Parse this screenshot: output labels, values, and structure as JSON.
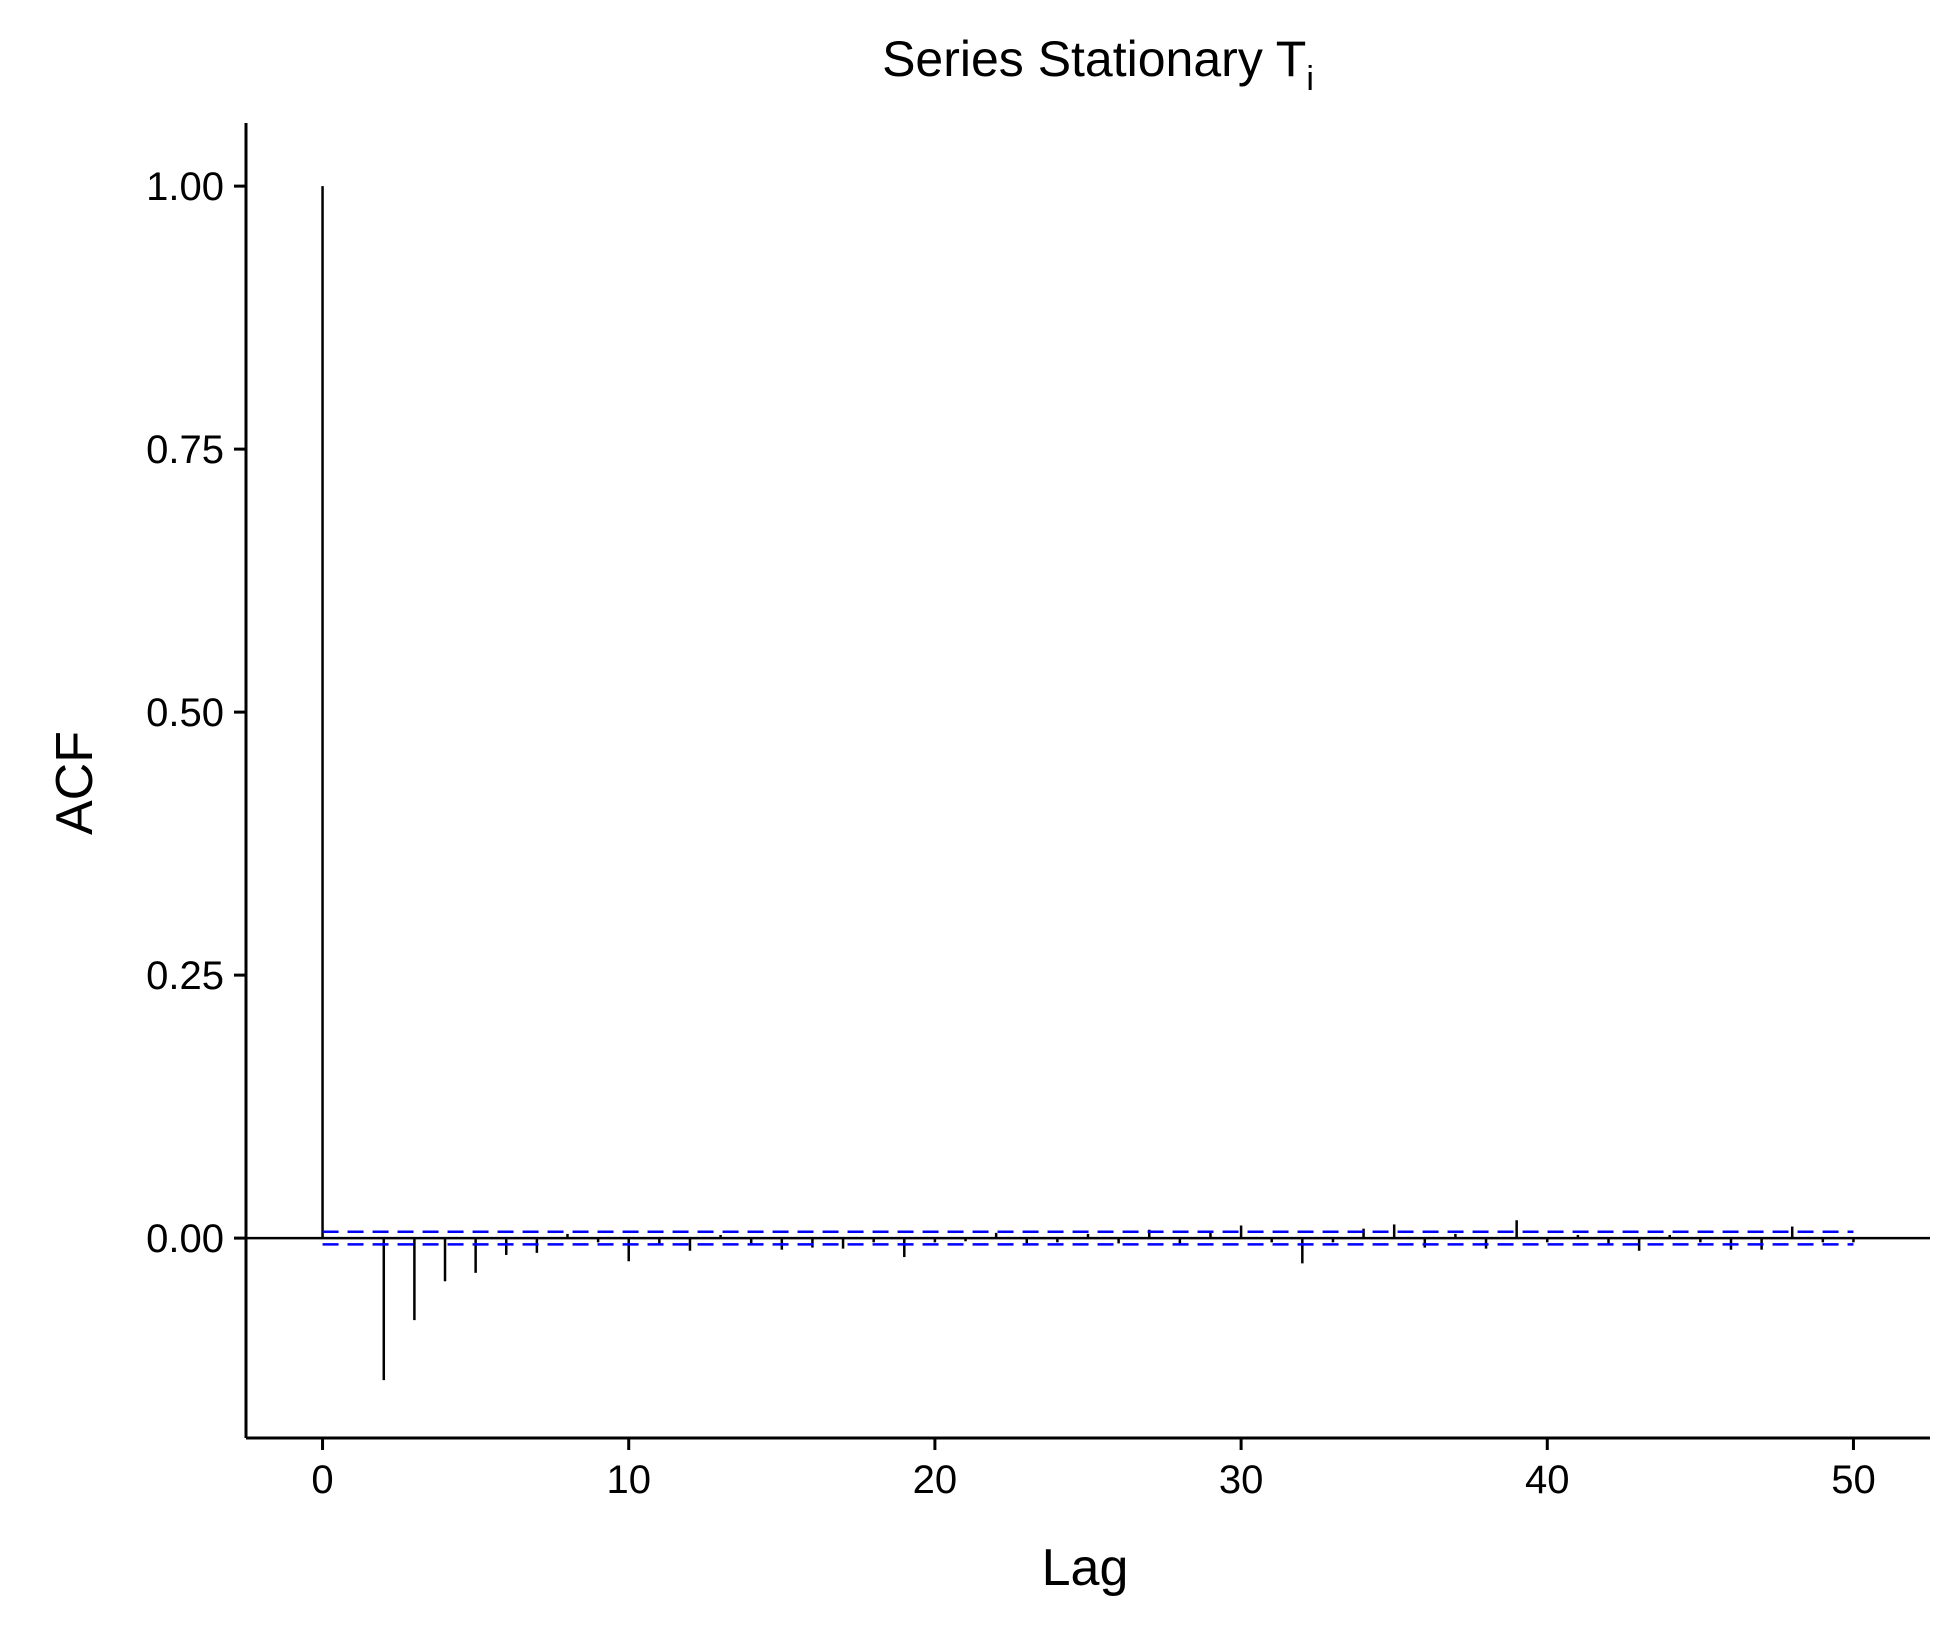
{
  "chart_data": {
    "type": "bar",
    "title": "Series Stationary T",
    "title_subscript": "i",
    "xlabel": "Lag",
    "ylabel": "ACF",
    "xlim": [
      -2.5,
      52.5
    ],
    "ylim": [
      -0.19,
      1.06
    ],
    "x_ticks": [
      0,
      10,
      20,
      30,
      40,
      50
    ],
    "x_tick_labels": [
      "0",
      "10",
      "20",
      "30",
      "40",
      "50"
    ],
    "y_ticks": [
      0,
      0.25,
      0.5,
      0.75,
      1.0
    ],
    "y_tick_labels": [
      "0.00",
      "0.25",
      "0.50",
      "0.75",
      "1.00"
    ],
    "confidence_band": 0.006,
    "band_color": "#0000ff",
    "bar_color": "#000000",
    "grid": false,
    "x": [
      0,
      1,
      2,
      3,
      4,
      5,
      6,
      7,
      8,
      9,
      10,
      11,
      12,
      13,
      14,
      15,
      16,
      17,
      18,
      19,
      20,
      21,
      22,
      23,
      24,
      25,
      26,
      27,
      28,
      29,
      30,
      31,
      32,
      33,
      34,
      35,
      36,
      37,
      38,
      39,
      40,
      41,
      42,
      43,
      44,
      45,
      46,
      47,
      48,
      49,
      50
    ],
    "values": [
      1.0,
      0.0,
      -0.135,
      -0.078,
      -0.041,
      -0.033,
      -0.016,
      -0.014,
      0.004,
      -0.004,
      -0.022,
      -0.005,
      -0.012,
      0.003,
      -0.006,
      -0.011,
      -0.009,
      -0.01,
      -0.004,
      -0.018,
      -0.004,
      -0.003,
      0.005,
      -0.005,
      -0.004,
      0.004,
      -0.005,
      0.008,
      -0.006,
      0.006,
      0.012,
      -0.004,
      -0.024,
      -0.004,
      0.009,
      0.013,
      -0.009,
      0.004,
      -0.01,
      0.017,
      -0.004,
      0.003,
      -0.007,
      -0.012,
      0.003,
      -0.004,
      -0.011,
      -0.011,
      0.011,
      -0.004,
      -0.004
    ]
  }
}
